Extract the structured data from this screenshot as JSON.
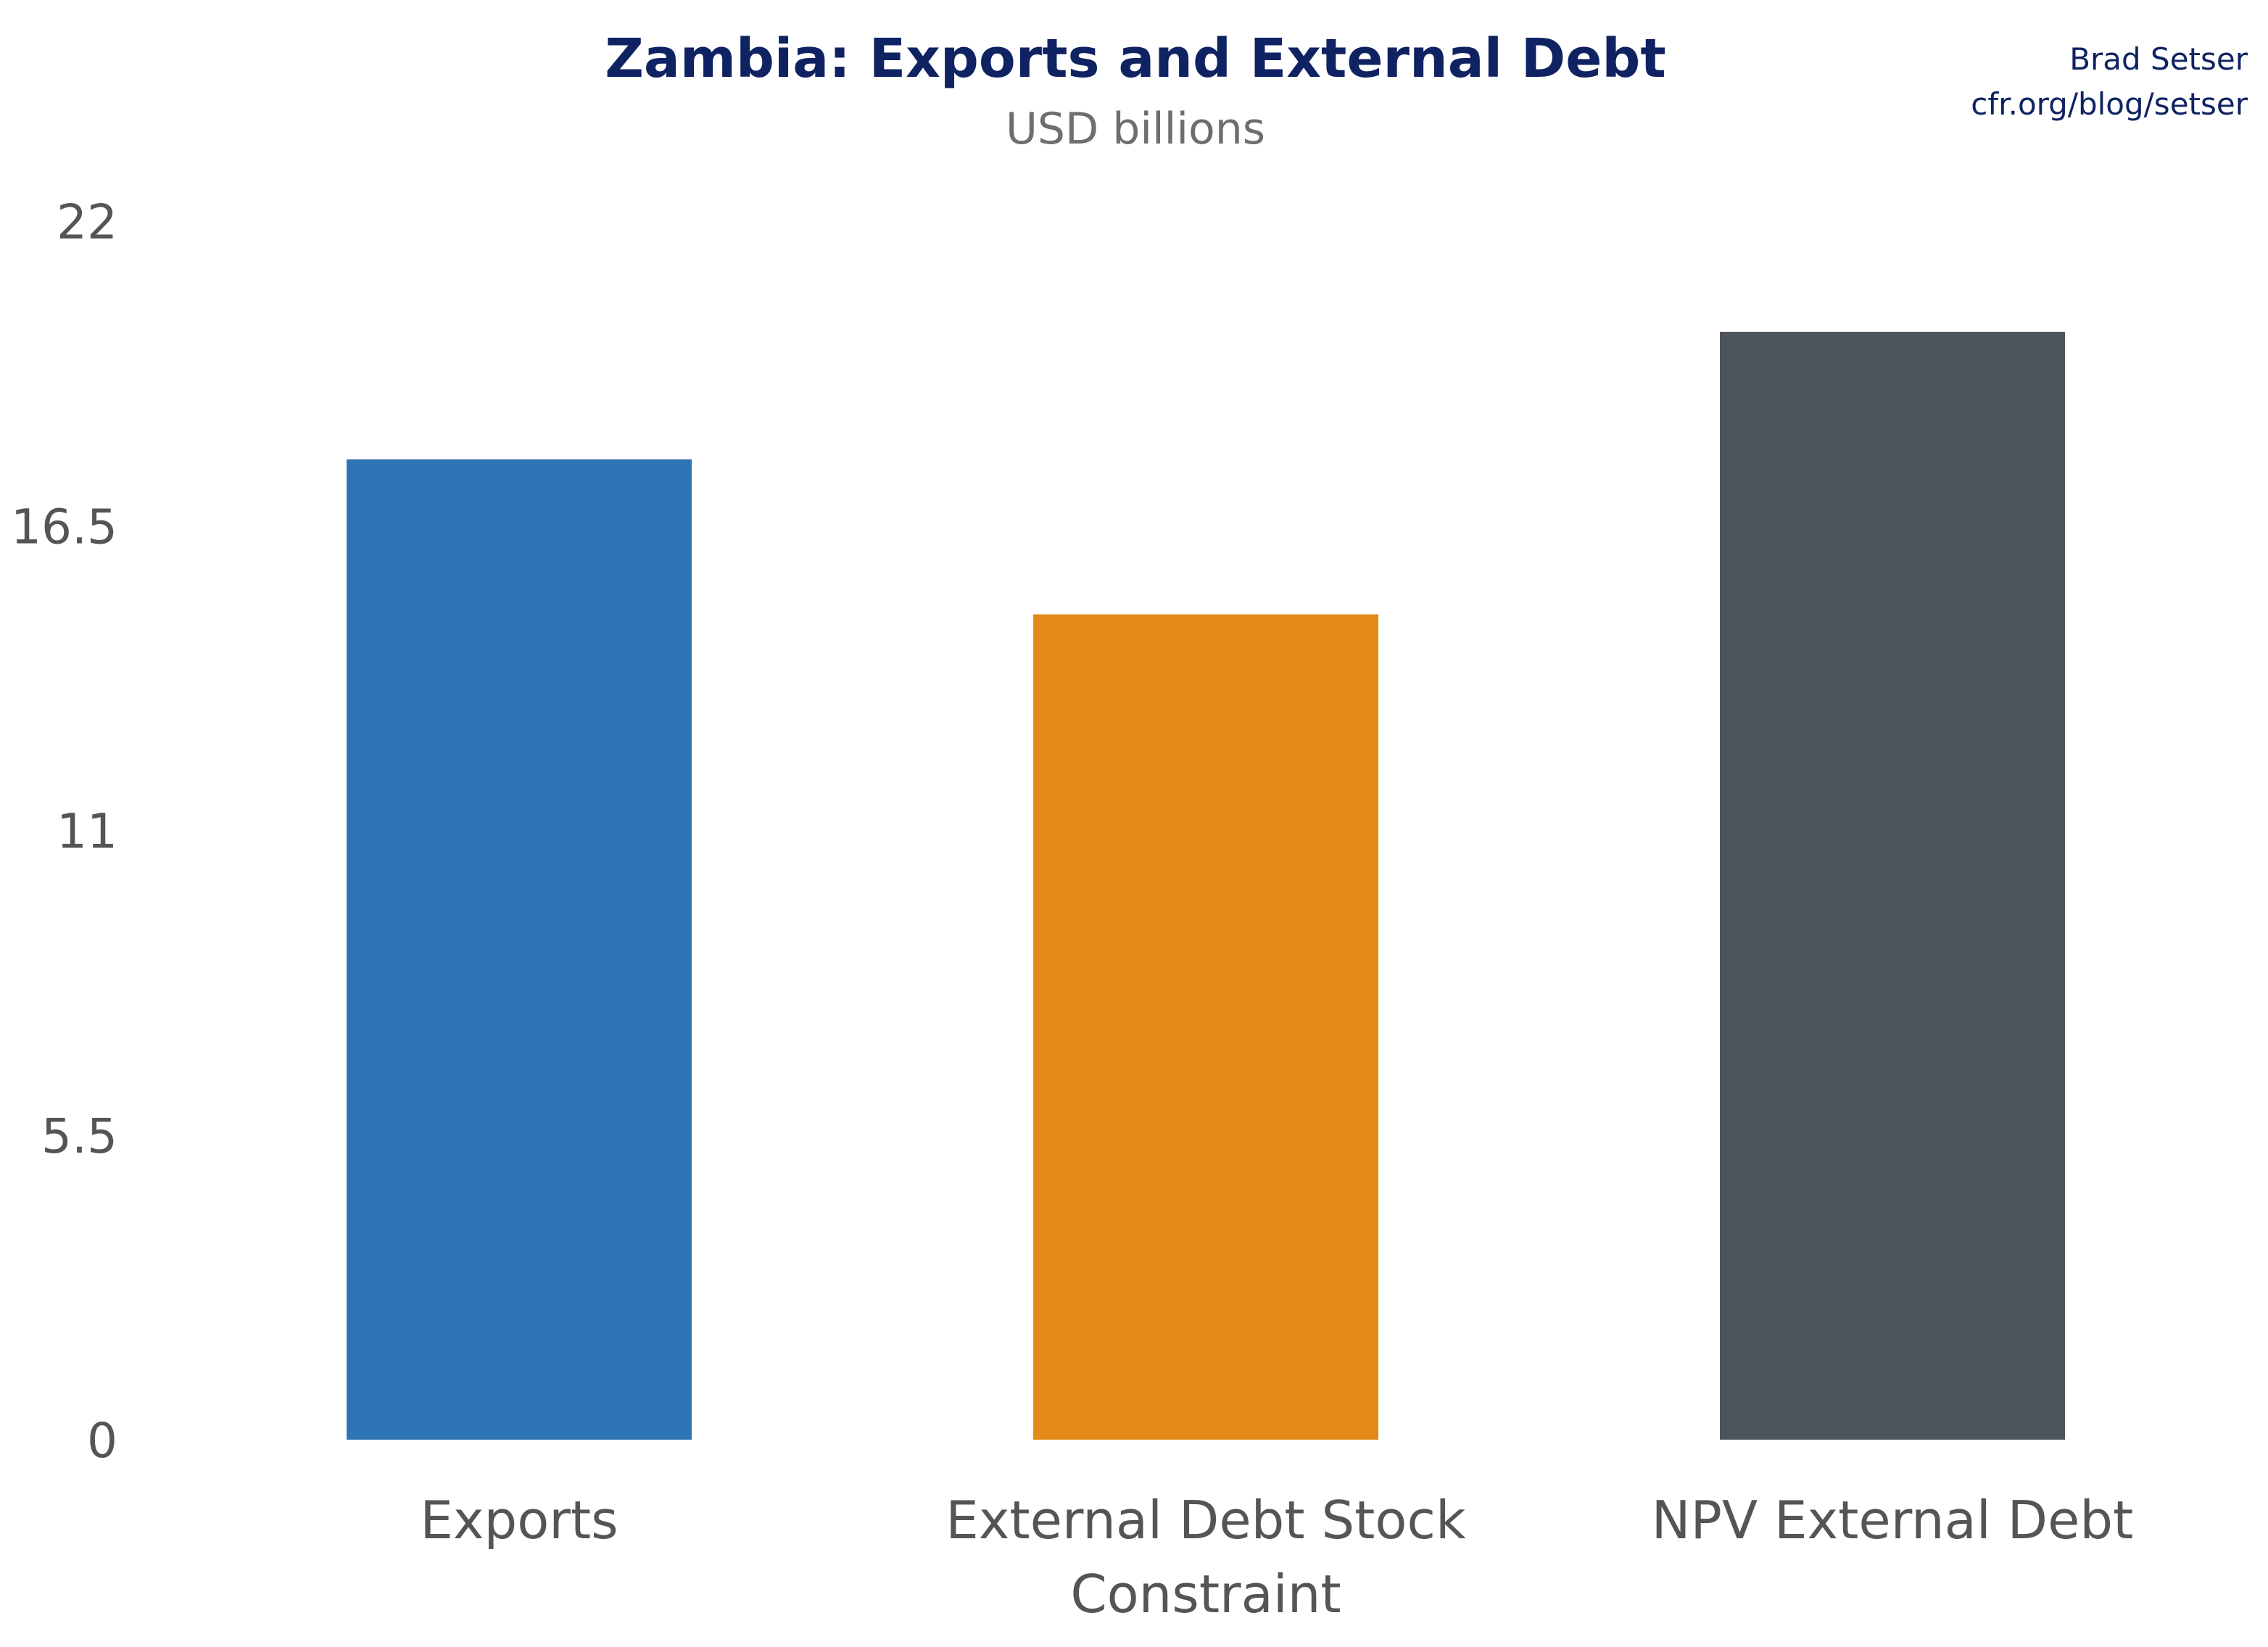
{
  "colors": {
    "title": "#0f2363",
    "subtitle": "#6e6e6e",
    "credit": "#0f2363",
    "axis_text": "#555555",
    "bars": [
      "#2f74b5",
      "#e28918",
      "#4d545c"
    ]
  },
  "credit": {
    "line1": "Brad Setser",
    "line2": "cfr.org/blog/setser"
  },
  "chart_data": {
    "type": "bar",
    "title": "Zambia: Exports and External Debt",
    "subtitle": "USD billions",
    "categories": [
      [
        "Exports"
      ],
      [
        "External Debt Stock",
        "Constraint"
      ],
      [
        "NPV External Debt"
      ]
    ],
    "values": [
      17.7,
      14.9,
      20.0
    ],
    "yticks": [
      "0",
      "5.5",
      "11",
      "16.5",
      "22"
    ],
    "ylim": [
      0,
      22
    ],
    "grid": false,
    "legend": "none"
  }
}
